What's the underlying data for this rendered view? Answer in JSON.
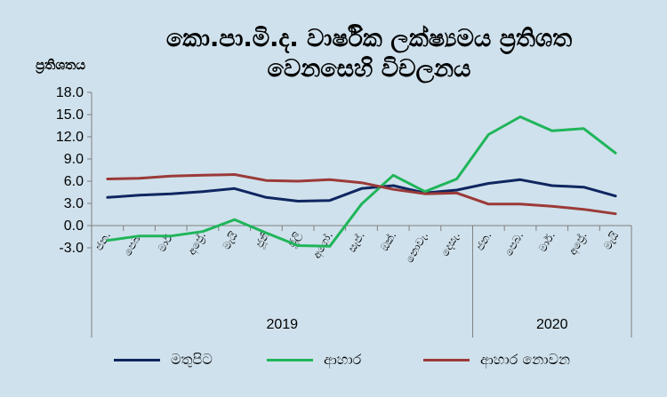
{
  "chart_data": {
    "type": "line",
    "title_line1": "කො.පා.මි.ද. වාර්ෂික ලක්ෂ්‍යමය ප්‍රතිශත",
    "title_line2": "වෙනසෙහි විචලනය",
    "ylabel": "ප්‍රතිශතය",
    "ylim": [
      -3.0,
      18.0
    ],
    "yticks": [
      "18.0",
      "15.0",
      "12.0",
      "9.0",
      "6.0",
      "3.0",
      "0.0",
      "-3.0"
    ],
    "categories": [
      "ජන.",
      "පෙබ.",
      "මාර්.",
      "අප්‍රේ.",
      "මැයි",
      "ජූනි",
      "ජූලි",
      "අගෝ.",
      "සැප්.",
      "ඔක්.",
      "නොවැ.",
      "දෙසැ.",
      "ජන.",
      "පෙබ.",
      "මාර්.",
      "අප්‍රේ.",
      "මැයි"
    ],
    "years": [
      {
        "label": "2019",
        "start": 0,
        "end": 11
      },
      {
        "label": "2020",
        "start": 12,
        "end": 16
      }
    ],
    "series": [
      {
        "name": "මතුපිට",
        "color": "#0f2660",
        "values": [
          3.8,
          4.1,
          4.3,
          4.6,
          5.0,
          3.8,
          3.3,
          3.4,
          5.0,
          5.4,
          4.4,
          4.8,
          5.7,
          6.2,
          5.4,
          5.2,
          4.0
        ]
      },
      {
        "name": "ආහාර",
        "color": "#1fb55a",
        "values": [
          -2.0,
          -1.4,
          -1.4,
          -0.8,
          0.8,
          -1.0,
          -2.7,
          -2.8,
          2.9,
          6.8,
          4.6,
          6.3,
          12.3,
          14.7,
          12.8,
          13.1,
          9.8
        ]
      },
      {
        "name": "ආහාර නොවන",
        "color": "#9b3a38",
        "values": [
          6.3,
          6.4,
          6.7,
          6.8,
          6.9,
          6.1,
          6.0,
          6.2,
          5.8,
          4.9,
          4.3,
          4.4,
          2.9,
          2.9,
          2.6,
          2.2,
          1.6
        ]
      }
    ]
  }
}
